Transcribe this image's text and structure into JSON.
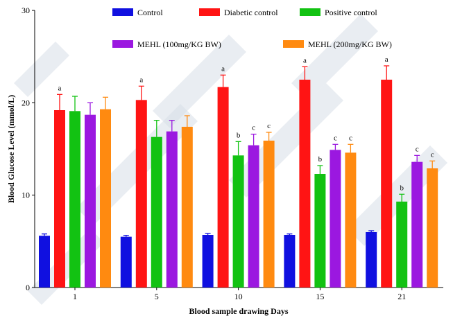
{
  "chart_data": {
    "type": "bar",
    "title": "",
    "xlabel": "Blood sample drawing Days",
    "ylabel": "Blood Glucose Level (mmol/L)",
    "ylim": [
      0,
      30
    ],
    "yticks": [
      0,
      10,
      20,
      30
    ],
    "categories": [
      "1",
      "5",
      "10",
      "15",
      "21"
    ],
    "grid": false,
    "legend_position": "top",
    "series": [
      {
        "name": "Control",
        "color": "#1010e0",
        "values": [
          5.6,
          5.5,
          5.7,
          5.7,
          6.0
        ],
        "errors": [
          0.2,
          0.15,
          0.15,
          0.1,
          0.15
        ],
        "labels": [
          "",
          "",
          "",
          "",
          ""
        ]
      },
      {
        "name": "Diabetic control",
        "color": "#ff1414",
        "values": [
          19.2,
          20.3,
          21.7,
          22.5,
          22.5
        ],
        "errors": [
          1.7,
          1.5,
          1.3,
          1.4,
          1.5
        ],
        "labels": [
          "a",
          "a",
          "a",
          "",
          ""
        ]
      },
      {
        "name": "Positive control",
        "color": "#12c212",
        "values": [
          19.1,
          16.3,
          14.3,
          12.3,
          9.3
        ],
        "errors": [
          1.6,
          1.8,
          1.5,
          0.9,
          0.8
        ],
        "labels": [
          "",
          "",
          "b",
          "b",
          "b"
        ]
      },
      {
        "name": "MEHL (100mg/KG BW)",
        "color": "#9b18e0",
        "values": [
          18.7,
          16.9,
          15.4,
          14.9,
          13.6
        ],
        "errors": [
          1.3,
          1.2,
          1.2,
          0.6,
          0.7
        ],
        "labels": [
          "",
          "",
          "c",
          "c",
          "c"
        ]
      },
      {
        "name": "MEHL (200mg/KG BW)",
        "color": "#ff8a10",
        "values": [
          19.3,
          17.4,
          15.9,
          14.6,
          12.9
        ],
        "errors": [
          1.3,
          1.2,
          0.9,
          0.9,
          0.8
        ],
        "labels": [
          "",
          "",
          "c",
          "c",
          "c"
        ]
      }
    ],
    "extra_labels": [
      {
        "category": "15",
        "series": "Diabetic control",
        "text": "a"
      },
      {
        "category": "21",
        "series": "Diabetic control",
        "text": "a"
      }
    ]
  }
}
